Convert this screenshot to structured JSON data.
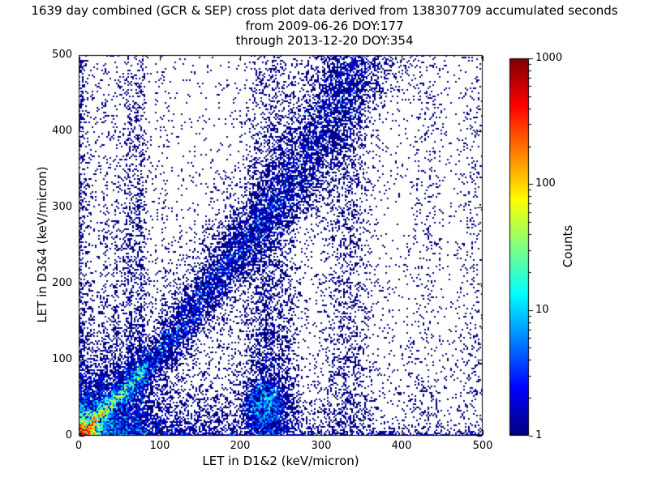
{
  "chart_data": {
    "type": "heatmap",
    "title_lines": [
      "1639 day combined (GCR & SEP) cross plot data derived from 138307709 accumulated seconds",
      "from 2009-06-26 DOY:177",
      "through 2013-12-20 DOY:354"
    ],
    "meta": {
      "days": 1639,
      "accumulated_seconds": 138307709,
      "start": "2009-06-26 DOY:177",
      "end": "2013-12-20 DOY:354"
    },
    "xlabel": "LET in D1&2 (keV/micron)",
    "ylabel": "LET in D3&4 (keV/micron)",
    "xlim": [
      0,
      500
    ],
    "ylim": [
      0,
      500
    ],
    "xticks": [
      0,
      100,
      200,
      300,
      400,
      500
    ],
    "yticks": [
      0,
      100,
      200,
      300,
      400,
      500
    ],
    "grid": false,
    "legend": null,
    "colorbar": {
      "label": "Counts",
      "scale": "log",
      "min": 1,
      "max": 1000,
      "ticks": [
        1,
        10,
        100,
        1000
      ],
      "tick_labels": [
        "1",
        "10",
        "100",
        "1000"
      ],
      "colormap": "jet"
    },
    "colors": {
      "background": "#ffffff",
      "frame": "#000000",
      "count_min_color": "#000080",
      "count_max_color": "#800000"
    },
    "seed": 42,
    "density_features": [
      {
        "kind": "bg",
        "name": "uniform-background-scatter",
        "base": 0.025,
        "amp": 0.12,
        "taux": 250,
        "tauy": 250
      },
      {
        "kind": "decay2d",
        "name": "bottom-fan",
        "amp": 2.2,
        "taux": 130,
        "tauy": 26
      },
      {
        "kind": "decay2d",
        "name": "bottom-fan-halo",
        "amp": 0.35,
        "taux": 260,
        "tauy": 70
      },
      {
        "kind": "decay2d",
        "name": "left-edge-column",
        "amp": 0.9,
        "taux": 2.5,
        "tauy": 99999
      },
      {
        "kind": "decay2d",
        "name": "left-edge-halo",
        "amp": 0.3,
        "taux": 12,
        "tauy": 99999
      },
      {
        "kind": "decay2d",
        "name": "bottom-edge-row",
        "amp": 1.0,
        "taux": 99999,
        "tauy": 2.5
      },
      {
        "kind": "decay2d",
        "name": "bottom-edge-halo",
        "amp": 0.3,
        "taux": 99999,
        "tauy": 8
      },
      {
        "kind": "blob",
        "name": "origin-hotspot-core",
        "x": 0,
        "y": 0,
        "sx": 6,
        "sy": 6,
        "amp": 900
      },
      {
        "kind": "blob",
        "name": "origin-hotspot-mid",
        "x": 0,
        "y": 0,
        "sx": 13,
        "sy": 13,
        "amp": 80
      },
      {
        "kind": "blob",
        "name": "origin-hotspot-shell",
        "x": 0,
        "y": 0,
        "sx": 28,
        "sy": 28,
        "amp": 8
      },
      {
        "kind": "blob",
        "name": "origin-hotspot-halo",
        "x": 0,
        "y": 0,
        "sx": 60,
        "sy": 60,
        "amp": 1.2
      },
      {
        "kind": "ridge",
        "name": "low-let-bright-diagonal",
        "x1": 0,
        "y1": 0,
        "x2": 78,
        "y2": 80,
        "w": 2.5,
        "amp0": 300,
        "amp1": 10
      },
      {
        "kind": "ridge",
        "name": "low-let-diagonal-halo",
        "x1": 0,
        "y1": 0,
        "x2": 78,
        "y2": 80,
        "w": 7,
        "amp0": 25,
        "amp1": 1.5
      },
      {
        "kind": "blob",
        "name": "ridge-end-knot",
        "x": 75,
        "y": 78,
        "sx": 6,
        "sy": 6,
        "amp": 10
      },
      {
        "kind": "path_band",
        "name": "gcr-diagonal-band",
        "points": [
          [
            0,
            0
          ],
          [
            60,
            62
          ],
          [
            120,
            132
          ],
          [
            200,
            248
          ],
          [
            260,
            330
          ],
          [
            310,
            420
          ],
          [
            345,
            500
          ]
        ],
        "w0": 5,
        "w1": 26,
        "amp0": 3,
        "amp1": 0.9,
        "halo_mult": 2.3,
        "halo_amp0": 0.3,
        "halo_amp1": 0.12
      },
      {
        "kind": "vband",
        "name": "vertical-streak-33",
        "x": 33,
        "w": 3,
        "amp": 0.4,
        "ytau": 400
      },
      {
        "kind": "vband",
        "name": "vertical-streak-47",
        "x": 47,
        "w": 3,
        "amp": 0.45,
        "ytau": 400
      },
      {
        "kind": "vband",
        "name": "vertical-streak-62",
        "x": 62,
        "w": 4,
        "amp": 0.7,
        "ytau": 500
      },
      {
        "kind": "vband",
        "name": "vertical-streak-76",
        "x": 76,
        "w": 4.5,
        "amp": 0.8,
        "ytau": 600
      },
      {
        "kind": "vband",
        "name": "vertical-streak-105",
        "x": 105,
        "w": 5,
        "amp": 0.18,
        "ytau": 300
      },
      {
        "kind": "vband",
        "name": "vertical-band-232",
        "x": 232,
        "w": 14,
        "amp": 1.4,
        "ytau": 150,
        "base": 0.18
      },
      {
        "kind": "vband",
        "name": "vertical-band-258",
        "x": 258,
        "w": 10,
        "amp": 0.45,
        "ytau": 220
      },
      {
        "kind": "vband",
        "name": "vertical-band-332",
        "x": 332,
        "w": 16,
        "amp": 0.35,
        "ytau": 99999
      },
      {
        "kind": "vband",
        "name": "vertical-streak-430",
        "x": 430,
        "w": 12,
        "amp": 0.1,
        "ytau": 99999
      },
      {
        "kind": "vband",
        "name": "vertical-streak-487",
        "x": 487,
        "w": 10,
        "amp": 0.12,
        "ytau": 99999
      },
      {
        "kind": "blob",
        "name": "cluster-230-42",
        "x": 230,
        "y": 42,
        "sx": 13,
        "sy": 15,
        "amp": 6
      }
    ]
  }
}
